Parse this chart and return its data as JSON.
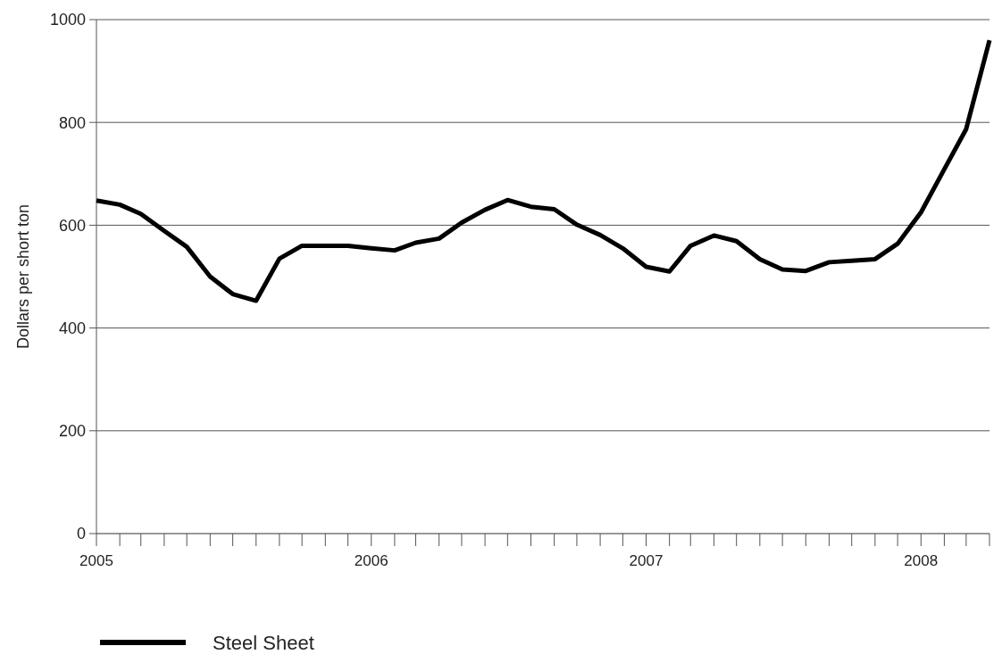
{
  "chart_data": {
    "type": "line",
    "ylabel": "Dollars per short ton",
    "x": [
      "2005-01",
      "2005-02",
      "2005-03",
      "2005-04",
      "2005-05",
      "2005-06",
      "2005-07",
      "2005-08",
      "2005-09",
      "2005-10",
      "2005-11",
      "2005-12",
      "2006-01",
      "2006-02",
      "2006-03",
      "2006-04",
      "2006-05",
      "2006-06",
      "2006-07",
      "2006-08",
      "2006-09",
      "2006-10",
      "2006-11",
      "2006-12",
      "2007-01",
      "2007-02",
      "2007-03",
      "2007-04",
      "2007-05",
      "2007-06",
      "2007-07",
      "2007-08",
      "2007-09",
      "2007-10",
      "2007-11",
      "2007-12",
      "2008-01",
      "2008-02",
      "2008-03",
      "2008-04"
    ],
    "series": [
      {
        "name": "Steel Sheet",
        "color": "#000000",
        "values": [
          648,
          640,
          622,
          589,
          558,
          500,
          466,
          453,
          535,
          560,
          560,
          560,
          555,
          551,
          566,
          574,
          605,
          630,
          649,
          636,
          631,
          601,
          581,
          555,
          519,
          510,
          560,
          580,
          569,
          534,
          514,
          511,
          528,
          531,
          534,
          564,
          625,
          709,
          787,
          960
        ]
      }
    ],
    "xlim": [
      "2005-01",
      "2008-04"
    ],
    "xticks": [
      {
        "value": "2005-01",
        "label": "2005"
      },
      {
        "value": "2005-02",
        "label": null
      },
      {
        "value": "2005-03",
        "label": null
      },
      {
        "value": "2005-04",
        "label": null
      },
      {
        "value": "2005-05",
        "label": null
      },
      {
        "value": "2005-06",
        "label": null
      },
      {
        "value": "2005-07",
        "label": null
      },
      {
        "value": "2005-08",
        "label": null
      },
      {
        "value": "2005-09",
        "label": null
      },
      {
        "value": "2005-10",
        "label": null
      },
      {
        "value": "2005-11",
        "label": null
      },
      {
        "value": "2005-12",
        "label": null
      },
      {
        "value": "2006-01",
        "label": "2006"
      },
      {
        "value": "2006-02",
        "label": null
      },
      {
        "value": "2006-03",
        "label": null
      },
      {
        "value": "2006-04",
        "label": null
      },
      {
        "value": "2006-05",
        "label": null
      },
      {
        "value": "2006-06",
        "label": null
      },
      {
        "value": "2006-07",
        "label": null
      },
      {
        "value": "2006-08",
        "label": null
      },
      {
        "value": "2006-09",
        "label": null
      },
      {
        "value": "2006-10",
        "label": null
      },
      {
        "value": "2006-11",
        "label": null
      },
      {
        "value": "2006-12",
        "label": null
      },
      {
        "value": "2007-01",
        "label": "2007"
      },
      {
        "value": "2007-02",
        "label": null
      },
      {
        "value": "2007-03",
        "label": null
      },
      {
        "value": "2007-04",
        "label": null
      },
      {
        "value": "2007-05",
        "label": null
      },
      {
        "value": "2007-06",
        "label": null
      },
      {
        "value": "2007-07",
        "label": null
      },
      {
        "value": "2007-08",
        "label": null
      },
      {
        "value": "2007-09",
        "label": null
      },
      {
        "value": "2007-10",
        "label": null
      },
      {
        "value": "2007-11",
        "label": null
      },
      {
        "value": "2007-12",
        "label": null
      },
      {
        "value": "2008-01",
        "label": "2008"
      },
      {
        "value": "2008-02",
        "label": null
      },
      {
        "value": "2008-03",
        "label": null
      },
      {
        "value": "2008-04",
        "label": null
      }
    ],
    "ylim": [
      0,
      1000
    ],
    "yticks": [
      0,
      200,
      400,
      600,
      800,
      1000
    ],
    "grid": "y",
    "legend": "bottom left",
    "marker": "none",
    "line_style": "solid"
  }
}
